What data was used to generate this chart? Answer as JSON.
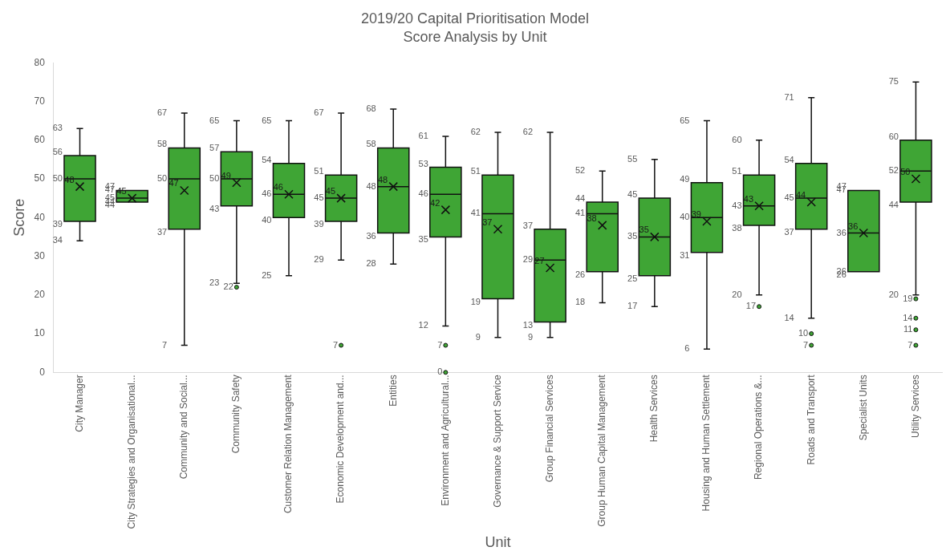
{
  "chart_data": {
    "type": "box",
    "title": "2019/20 Capital Prioritisation Model",
    "subtitle": "Score Analysis by Unit",
    "xlabel": "Unit",
    "ylabel": "Score",
    "categories": [
      "City Manager",
      "City Strategies and Organisational...",
      "Community and Social...",
      "Community Safety",
      "Customer Relation Management",
      "Economic Development and...",
      "Entities",
      "Environment and Agricultural...",
      "Governance & Support Service",
      "Group Financial Services",
      "Group Human Capital Management",
      "Health Services",
      "Housing and Human Settlement",
      "Regional Operations &...",
      "Roads and Transport",
      "Specialist Units",
      "Utility Services"
    ],
    "color": "#3fa535",
    "boxes": [
      {
        "low": 34,
        "q1": 39,
        "median": 50,
        "q3": 56,
        "high": 63,
        "mean": 48
      },
      {
        "low": 44,
        "q1": 44,
        "median": 45,
        "q3": 47,
        "high": 47,
        "mean": 45
      },
      {
        "low": 7,
        "q1": 37,
        "median": 50,
        "q3": 58,
        "high": 67,
        "mean": 47
      },
      {
        "low": 23,
        "q1": 43,
        "median": 50,
        "q3": 57,
        "high": 65,
        "mean": 49,
        "outliers": [
          22
        ]
      },
      {
        "low": 25,
        "q1": 40,
        "median": 46,
        "q3": 54,
        "high": 65,
        "mean": 46
      },
      {
        "low": 29,
        "q1": 39,
        "median": 45,
        "q3": 51,
        "high": 67,
        "mean": 45,
        "outliers": [
          7
        ]
      },
      {
        "low": 28,
        "q1": 36,
        "median": 48,
        "q3": 58,
        "high": 68,
        "mean": 48
      },
      {
        "low": 12,
        "q1": 35,
        "median": 46,
        "q3": 53,
        "high": 61,
        "mean": 42,
        "outliers": [
          7,
          0
        ]
      },
      {
        "low": 9,
        "q1": 19,
        "median": 41,
        "q3": 51,
        "high": 62,
        "mean": 37
      },
      {
        "low": 9,
        "q1": 13,
        "median": 29,
        "q3": 37,
        "high": 62,
        "mean": 27
      },
      {
        "low": 18,
        "q1": 26,
        "median": 41,
        "q3": 44,
        "high": 52,
        "mean": 38
      },
      {
        "low": 17,
        "q1": 25,
        "median": 35,
        "q3": 45,
        "high": 55,
        "mean": 35
      },
      {
        "low": 6,
        "q1": 31,
        "median": 40,
        "q3": 49,
        "high": 65,
        "mean": 39
      },
      {
        "low": 20,
        "q1": 38,
        "median": 43,
        "q3": 51,
        "high": 60,
        "mean": 43,
        "outliers": [
          17
        ]
      },
      {
        "low": 14,
        "q1": 37,
        "median": 45,
        "q3": 54,
        "high": 71,
        "mean": 44,
        "outliers": [
          10,
          7
        ]
      },
      {
        "low": 26,
        "q1": 26,
        "median": 36,
        "q3": 47,
        "high": 47,
        "mean": 36
      },
      {
        "low": 20,
        "q1": 44,
        "median": 52,
        "q3": 60,
        "high": 75,
        "mean": 50,
        "outliers": [
          19,
          14,
          11,
          7
        ]
      }
    ],
    "annotations": [
      {
        "text": "63",
        "x": "City Manager",
        "y": 63
      },
      {
        "text": "56",
        "x": "City Manager",
        "y": 56
      },
      {
        "text": "50",
        "x": "City Manager",
        "y": 50
      },
      {
        "text": "39",
        "x": "City Manager",
        "y": 39
      },
      {
        "text": "34",
        "x": "City Manager",
        "y": 34
      },
      "48",
      {
        "text": "47",
        "x": "City Strategies and Organisational...",
        "y": 47
      },
      {
        "text": "47",
        "x": "City Strategies and Organisational...",
        "y": 47
      },
      {
        "text": "45",
        "x": "City Strategies and Organisational...",
        "y": 45
      },
      {
        "text": "44",
        "x": "City Strategies and Organisational...",
        "y": 44
      },
      {
        "text": "44",
        "x": "City Strategies and Organisational...",
        "y": 44
      },
      "45",
      {
        "text": "67",
        "x": "Community and Social...",
        "y": 67
      },
      {
        "text": "58",
        "x": "Community and Social...",
        "y": 58
      },
      {
        "text": "50",
        "x": "Community and Social...",
        "y": 50
      },
      {
        "text": "37",
        "x": "Community and Social...",
        "y": 37
      },
      {
        "text": "7",
        "x": "Community and Social...",
        "y": 7
      },
      "47",
      {
        "text": "65",
        "x": "Community Safety",
        "y": 65
      },
      {
        "text": "57",
        "x": "Community Safety",
        "y": 57
      },
      {
        "text": "50",
        "x": "Community Safety",
        "y": 50
      },
      {
        "text": "43",
        "x": "Community Safety",
        "y": 43
      },
      {
        "text": "23",
        "x": "Community Safety",
        "y": 23
      },
      "49",
      "22",
      {
        "text": "65",
        "x": "Customer Relation Management",
        "y": 65
      },
      {
        "text": "54",
        "x": "Customer Relation Management",
        "y": 54
      },
      {
        "text": "46",
        "x": "Customer Relation Management",
        "y": 46
      },
      {
        "text": "40",
        "x": "Customer Relation Management",
        "y": 40
      },
      {
        "text": "25",
        "x": "Customer Relation Management",
        "y": 25
      },
      "46",
      {
        "text": "67",
        "x": "Economic Development and...",
        "y": 67
      },
      {
        "text": "51",
        "x": "Economic Development and...",
        "y": 51
      },
      {
        "text": "45",
        "x": "Economic Development and...",
        "y": 45
      },
      {
        "text": "39",
        "x": "Economic Development and...",
        "y": 39
      },
      {
        "text": "29",
        "x": "Economic Development and...",
        "y": 29
      },
      "45",
      "7",
      {
        "text": "68",
        "x": "Entities",
        "y": 68
      },
      {
        "text": "58",
        "x": "Entities",
        "y": 58
      },
      {
        "text": "48",
        "x": "Entities",
        "y": 48
      },
      {
        "text": "36",
        "x": "Entities",
        "y": 36
      },
      {
        "text": "28",
        "x": "Entities",
        "y": 28
      },
      "48",
      {
        "text": "61",
        "x": "Environment and Agricultural...",
        "y": 61
      },
      {
        "text": "53",
        "x": "Environment and Agricultural...",
        "y": 53
      },
      {
        "text": "46",
        "x": "Environment and Agricultural...",
        "y": 46
      },
      {
        "text": "35",
        "x": "Environment and Agricultural...",
        "y": 35
      },
      {
        "text": "12",
        "x": "Environment and Agricultural...",
        "y": 12
      },
      "42",
      "7",
      "0",
      {
        "text": "62",
        "x": "Governance & Support Service",
        "y": 62
      },
      {
        "text": "51",
        "x": "Governance & Support Service",
        "y": 51
      },
      {
        "text": "41",
        "x": "Governance & Support Service",
        "y": 41
      },
      {
        "text": "19",
        "x": "Governance & Support Service",
        "y": 19
      },
      {
        "text": "9",
        "x": "Governance & Support Service",
        "y": 9
      },
      "37",
      {
        "text": "62",
        "x": "Group Financial Services",
        "y": 62
      },
      {
        "text": "37",
        "x": "Group Financial Services",
        "y": 37
      },
      {
        "text": "29",
        "x": "Group Financial Services",
        "y": 29
      },
      {
        "text": "13",
        "x": "Group Financial Services",
        "y": 13
      },
      {
        "text": "9",
        "x": "Group Financial Services",
        "y": 9
      },
      "27",
      {
        "text": "52",
        "x": "Group Human Capital Management",
        "y": 52
      },
      {
        "text": "44",
        "x": "Group Human Capital Management",
        "y": 44
      },
      {
        "text": "41",
        "x": "Group Human Capital Management",
        "y": 41
      },
      {
        "text": "26",
        "x": "Group Human Capital Management",
        "y": 26
      },
      {
        "text": "18",
        "x": "Group Human Capital Management",
        "y": 18
      },
      "38",
      {
        "text": "55",
        "x": "Health Services",
        "y": 55
      },
      {
        "text": "45",
        "x": "Health Services",
        "y": 45
      },
      {
        "text": "35",
        "x": "Health Services",
        "y": 35
      },
      {
        "text": "25",
        "x": "Health Services",
        "y": 25
      },
      {
        "text": "17",
        "x": "Health Services",
        "y": 17
      },
      "35",
      {
        "text": "65",
        "x": "Housing and Human Settlement",
        "y": 65
      },
      {
        "text": "49",
        "x": "Housing and Human Settlement",
        "y": 49
      },
      {
        "text": "40",
        "x": "Housing and Human Settlement",
        "y": 40
      },
      {
        "text": "31",
        "x": "Housing and Human Settlement",
        "y": 31
      },
      {
        "text": "6",
        "x": "Housing and Human Settlement",
        "y": 6
      },
      "39",
      {
        "text": "60",
        "x": "Regional Operations &...",
        "y": 60
      },
      {
        "text": "51",
        "x": "Regional Operations &...",
        "y": 51
      },
      {
        "text": "43",
        "x": "Regional Operations &...",
        "y": 43
      },
      {
        "text": "38",
        "x": "Regional Operations &...",
        "y": 38
      },
      {
        "text": "20",
        "x": "Regional Operations &...",
        "y": 20
      },
      "43",
      "17",
      {
        "text": "71",
        "x": "Roads and Transport",
        "y": 71
      },
      {
        "text": "54",
        "x": "Roads and Transport",
        "y": 54
      },
      {
        "text": "45",
        "x": "Roads and Transport",
        "y": 45
      },
      {
        "text": "37",
        "x": "Roads and Transport",
        "y": 37
      },
      {
        "text": "14",
        "x": "Roads and Transport",
        "y": 14
      },
      "44",
      "10",
      "7",
      {
        "text": "47",
        "x": "Specialist Units",
        "y": 47
      },
      {
        "text": "47",
        "x": "Specialist Units",
        "y": 47
      },
      {
        "text": "36",
        "x": "Specialist Units",
        "y": 36
      },
      {
        "text": "26",
        "x": "Specialist Units",
        "y": 26
      },
      {
        "text": "26",
        "x": "Specialist Units",
        "y": 26
      },
      "36",
      {
        "text": "75",
        "x": "Utility Services",
        "y": 75
      },
      {
        "text": "60",
        "x": "Utility Services",
        "y": 60
      },
      {
        "text": "52",
        "x": "Utility Services",
        "y": 52
      },
      {
        "text": "44",
        "x": "Utility Services",
        "y": 44
      },
      {
        "text": "20",
        "x": "Utility Services",
        "y": 20
      },
      "50",
      "19",
      "14",
      "11",
      "7"
    ],
    "ylim": [
      0,
      80
    ],
    "yticks": [
      0,
      10,
      20,
      30,
      40,
      50,
      60,
      70,
      80
    ],
    "grid": false,
    "legend": false
  }
}
